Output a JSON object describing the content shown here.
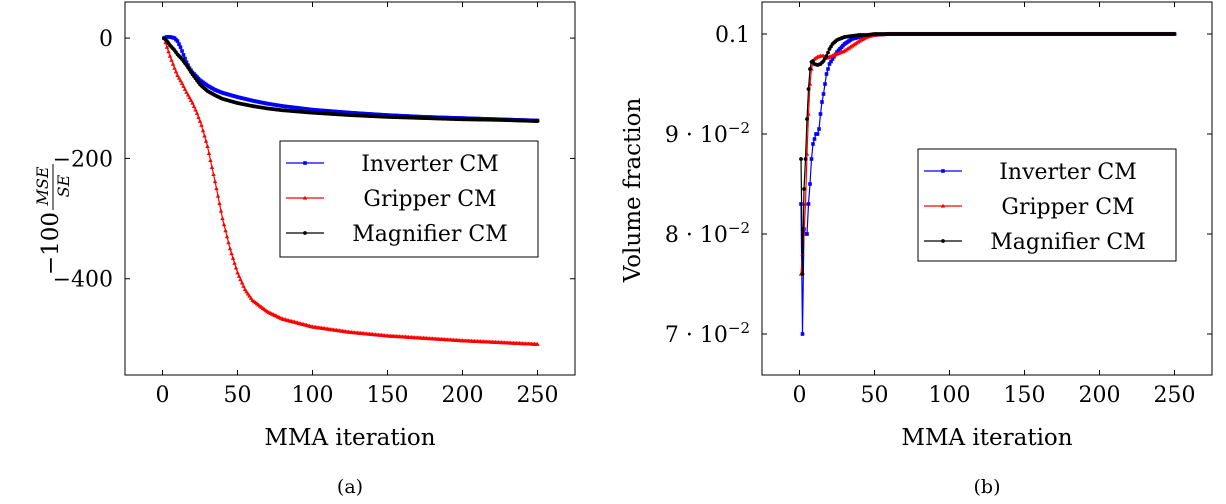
{
  "colors": {
    "inverter": "#0000ff",
    "gripper": "#ff0000",
    "magnifier": "#000000"
  },
  "chart_data": [
    {
      "type": "line",
      "caption": "(a)",
      "xlabel": "MMA iteration",
      "ylabel": "−100 MSE/SE",
      "ylabel_parts": {
        "prefix": "−100",
        "num": "MSE",
        "den": "SE"
      },
      "xlim": [
        -25,
        275
      ],
      "ylim": [
        -560,
        60
      ],
      "xticks": [
        0,
        50,
        100,
        150,
        200,
        250
      ],
      "xtick_labels": [
        "0",
        "50",
        "100",
        "150",
        "200",
        "250"
      ],
      "yticks": [
        0,
        -200,
        -400
      ],
      "ytick_labels": [
        "0",
        "−200",
        "−400"
      ],
      "grid": false,
      "legend_position": "right",
      "series": [
        {
          "name": "Inverter CM",
          "color_key": "inverter",
          "marker": "square",
          "x": [
            1,
            3,
            5,
            8,
            10,
            12,
            14,
            16,
            18,
            20,
            25,
            30,
            35,
            40,
            50,
            60,
            70,
            80,
            100,
            125,
            150,
            175,
            200,
            225,
            250
          ],
          "y": [
            0,
            2,
            2,
            0,
            -5,
            -15,
            -28,
            -40,
            -50,
            -57,
            -70,
            -79,
            -86,
            -91,
            -98,
            -104,
            -109,
            -113,
            -119,
            -124,
            -128,
            -131,
            -133,
            -135,
            -137
          ]
        },
        {
          "name": "Gripper CM",
          "color_key": "gripper",
          "marker": "triangle",
          "x": [
            1,
            3,
            5,
            8,
            10,
            13,
            16,
            20,
            23,
            26,
            30,
            33,
            36,
            40,
            45,
            50,
            55,
            60,
            70,
            80,
            100,
            125,
            150,
            175,
            200,
            225,
            250
          ],
          "y": [
            0,
            -15,
            -30,
            -50,
            -62,
            -75,
            -90,
            -108,
            -125,
            -145,
            -180,
            -215,
            -250,
            -300,
            -350,
            -390,
            -418,
            -436,
            -455,
            -467,
            -480,
            -489,
            -495,
            -499,
            -503,
            -506,
            -509
          ]
        },
        {
          "name": "Magnifier CM",
          "color_key": "magnifier",
          "marker": "dot",
          "x": [
            1,
            3,
            5,
            8,
            10,
            13,
            16,
            20,
            25,
            30,
            35,
            40,
            50,
            60,
            70,
            80,
            100,
            125,
            150,
            175,
            200,
            225,
            250
          ],
          "y": [
            0,
            -5,
            -12,
            -20,
            -27,
            -35,
            -45,
            -60,
            -77,
            -88,
            -95,
            -101,
            -108,
            -113,
            -117,
            -120,
            -124,
            -128,
            -131,
            -133,
            -135,
            -136,
            -138
          ]
        }
      ]
    },
    {
      "type": "line",
      "caption": "(b)",
      "xlabel": "MMA iteration",
      "ylabel": "Volume fraction",
      "xlim": [
        -25,
        275
      ],
      "ylim": [
        0.0659,
        0.1032
      ],
      "xticks": [
        0,
        50,
        100,
        150,
        200,
        250
      ],
      "xtick_labels": [
        "0",
        "50",
        "100",
        "150",
        "200",
        "250"
      ],
      "yticks": [
        0.07,
        0.08,
        0.09,
        0.1
      ],
      "ytick_labels": [
        {
          "mant": "7 · 10",
          "exp": "−2"
        },
        {
          "mant": "8 · 10",
          "exp": "−2"
        },
        {
          "mant": "9 · 10",
          "exp": "−2"
        },
        {
          "mant": "0.1",
          "exp": ""
        }
      ],
      "grid": false,
      "legend_position": "right",
      "series": [
        {
          "name": "Inverter CM",
          "color_key": "inverter",
          "marker": "square",
          "x": [
            1,
            2,
            3,
            4,
            5,
            6,
            7,
            8,
            9,
            10,
            11,
            12,
            13,
            14,
            15,
            16,
            17,
            18,
            20,
            22,
            25,
            30,
            35,
            40,
            45,
            50,
            60,
            80,
            100,
            150,
            200,
            250
          ],
          "y": [
            0.083,
            0.07,
            0.0805,
            0.08,
            0.08,
            0.083,
            0.085,
            0.0875,
            0.089,
            0.0895,
            0.09,
            0.09,
            0.0905,
            0.092,
            0.0932,
            0.094,
            0.095,
            0.096,
            0.097,
            0.0975,
            0.0982,
            0.099,
            0.0995,
            0.0997,
            0.0998,
            0.0999,
            0.1,
            0.1,
            0.1,
            0.1,
            0.1,
            0.1
          ]
        },
        {
          "name": "Gripper CM",
          "color_key": "gripper",
          "marker": "triangle",
          "x": [
            1,
            2,
            3,
            4,
            5,
            6,
            7,
            8,
            9,
            10,
            12,
            14,
            16,
            18,
            20,
            25,
            30,
            35,
            40,
            45,
            50,
            60,
            80,
            100,
            150,
            200,
            250
          ],
          "y": [
            0.076,
            0.078,
            0.08,
            0.083,
            0.088,
            0.092,
            0.095,
            0.0965,
            0.0972,
            0.0975,
            0.0977,
            0.0978,
            0.0978,
            0.0976,
            0.0977,
            0.098,
            0.0983,
            0.0988,
            0.0993,
            0.0997,
            0.0999,
            0.1,
            0.1,
            0.1,
            0.1,
            0.1,
            0.1
          ]
        },
        {
          "name": "Magnifier CM",
          "color_key": "magnifier",
          "marker": "dot",
          "x": [
            1,
            2,
            3,
            4,
            5,
            6,
            7,
            8,
            9,
            10,
            12,
            14,
            16,
            18,
            20,
            22,
            25,
            30,
            35,
            40,
            45,
            50,
            60,
            80,
            100,
            150,
            200,
            250
          ],
          "y": [
            0.0875,
            0.076,
            0.0845,
            0.0875,
            0.0915,
            0.0945,
            0.0965,
            0.0972,
            0.0973,
            0.097,
            0.0969,
            0.097,
            0.0973,
            0.0978,
            0.0985,
            0.099,
            0.0994,
            0.0997,
            0.0998,
            0.0999,
            0.0999,
            0.1,
            0.1,
            0.1,
            0.1,
            0.1,
            0.1,
            0.1
          ]
        }
      ]
    }
  ]
}
